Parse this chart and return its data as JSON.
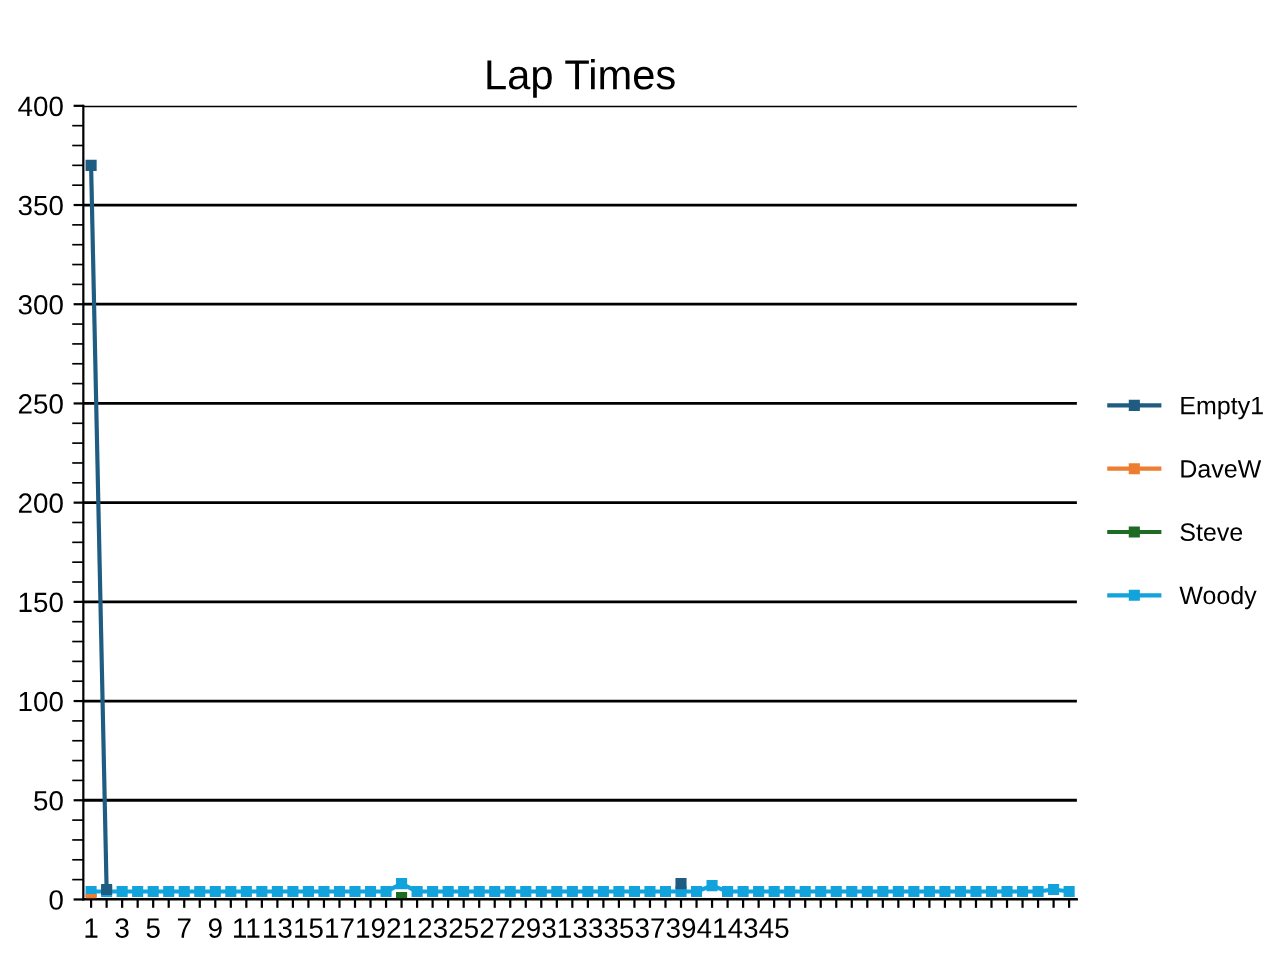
{
  "chart_data": {
    "type": "line",
    "title": "Lap Times",
    "categories": [
      "1",
      null,
      "3",
      null,
      "5",
      null,
      "7",
      null,
      "9",
      null,
      "11",
      null,
      "13",
      null,
      "15",
      null,
      "17",
      null,
      "19",
      null,
      "21",
      null,
      "23",
      null,
      "25",
      null,
      "27",
      null,
      "29",
      null,
      "31",
      null,
      "33",
      null,
      "35",
      null,
      "37",
      null,
      "39",
      null,
      "41",
      null,
      "43",
      null,
      "45",
      null,
      null,
      null,
      null,
      null,
      null,
      null,
      null,
      null,
      null,
      null,
      null,
      null,
      null,
      null,
      null,
      null,
      null,
      null
    ],
    "series": [
      {
        "name": "Woody",
        "color": "#12a3dc",
        "values": [
          4,
          4,
          4,
          4,
          4,
          4,
          4,
          4,
          4,
          4,
          4,
          4,
          4,
          4,
          4,
          4,
          4,
          4,
          4,
          4,
          8,
          4,
          4,
          4,
          4,
          4,
          4,
          4,
          4,
          4,
          4,
          4,
          4,
          4,
          4,
          4,
          4,
          4,
          4,
          4,
          7,
          4,
          4,
          4,
          4,
          4,
          4,
          4,
          4,
          4,
          4,
          4,
          4,
          4,
          4,
          4,
          4,
          4,
          4,
          4,
          4,
          4,
          5,
          4
        ]
      },
      {
        "name": "Steve",
        "color": "#1e6b24",
        "values": [
          null,
          null,
          null,
          null,
          null,
          null,
          null,
          null,
          null,
          null,
          null,
          null,
          null,
          null,
          null,
          null,
          null,
          null,
          null,
          null,
          1,
          null,
          null,
          null,
          null,
          null,
          null,
          null,
          null,
          null,
          null,
          null,
          null,
          null,
          null,
          null,
          null,
          null,
          null,
          null,
          null,
          null,
          null,
          null,
          null,
          null,
          null,
          null,
          null,
          null,
          null,
          null,
          null,
          null,
          null,
          null,
          null,
          null,
          null,
          null,
          null,
          null,
          null,
          null
        ]
      },
      {
        "name": "DaveW",
        "color": "#ed7d31",
        "values": [
          0,
          null,
          null,
          null,
          null,
          null,
          null,
          null,
          null,
          null,
          null,
          null,
          null,
          null,
          null,
          null,
          null,
          null,
          null,
          null,
          null,
          null,
          null,
          null,
          null,
          null,
          null,
          null,
          null,
          null,
          null,
          null,
          null,
          null,
          null,
          null,
          null,
          null,
          null,
          null,
          null,
          null,
          null,
          null,
          null,
          null,
          null,
          null,
          null,
          null,
          null,
          null,
          null,
          null,
          null,
          null,
          null,
          null,
          null,
          null,
          null,
          null,
          null,
          null
        ]
      },
      {
        "name": "Empty1",
        "color": "#1f5c82",
        "values": [
          370,
          5,
          null,
          null,
          null,
          null,
          null,
          null,
          null,
          null,
          null,
          null,
          null,
          null,
          null,
          null,
          null,
          null,
          null,
          null,
          null,
          null,
          null,
          null,
          null,
          null,
          null,
          null,
          null,
          null,
          null,
          null,
          null,
          null,
          null,
          null,
          null,
          null,
          8,
          null,
          null,
          null,
          null,
          null,
          null,
          null,
          null,
          null,
          null,
          null,
          null,
          null,
          null,
          null,
          null,
          null,
          null,
          null,
          null,
          null,
          null,
          null,
          null,
          null
        ]
      }
    ],
    "ylim": [
      0,
      400
    ],
    "yticks": [
      0,
      50,
      100,
      150,
      200,
      250,
      300,
      350,
      400
    ],
    "grid": "y",
    "legend": "right",
    "marker": "square",
    "line_style": "solid"
  }
}
